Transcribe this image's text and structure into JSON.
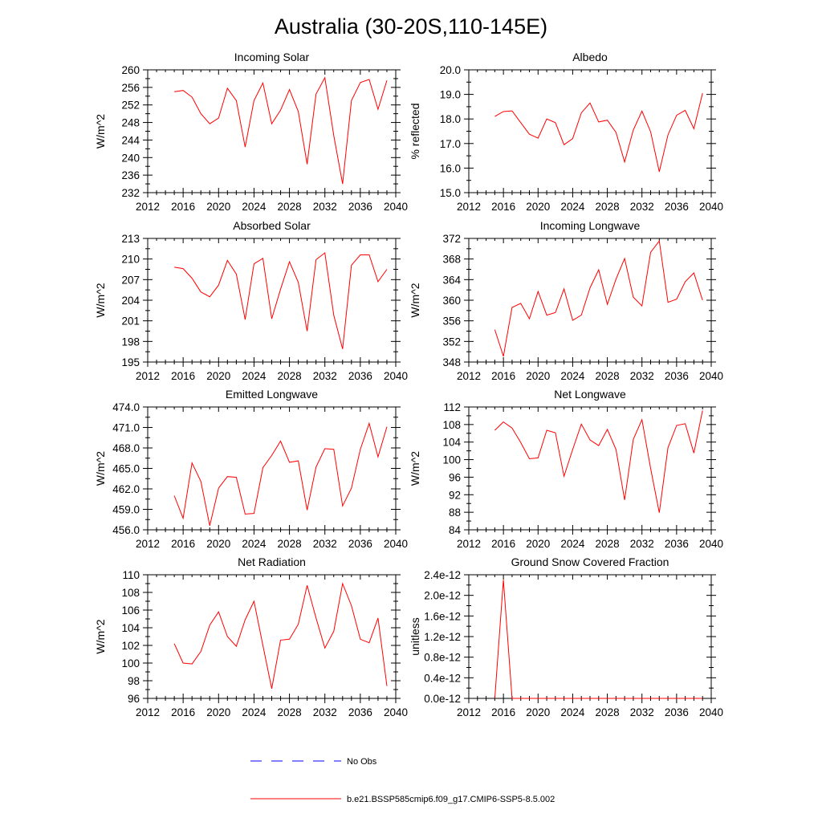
{
  "title": "Australia (30-20S,110-145E)",
  "colors": {
    "model": "#ff0000",
    "obs": "#0000ff",
    "axis": "#000000"
  },
  "legend": {
    "obs_label": "No Obs",
    "model_label": "b.e21.BSSP585cmip6.f09_g17.CMIP6-SSP5-8.5.002"
  },
  "chart_data": [
    {
      "type": "line",
      "title": "Incoming Solar",
      "ylabel": "W/m^2",
      "xlim": [
        2012,
        2040
      ],
      "ylim": [
        232,
        260
      ],
      "xticks": [
        "2012",
        "2016",
        "2020",
        "2024",
        "2028",
        "2032",
        "2036",
        "2040"
      ],
      "yticks": [
        "232",
        "236",
        "240",
        "244",
        "248",
        "252",
        "256",
        "260"
      ],
      "series": [
        {
          "x": [
            2015,
            2016,
            2017,
            2018,
            2019,
            2020,
            2021,
            2022,
            2023,
            2024,
            2025,
            2026,
            2027,
            2028,
            2029,
            2030,
            2031,
            2032,
            2033,
            2034,
            2035,
            2036,
            2037,
            2038,
            2039
          ],
          "values": [
            255.0,
            255.3,
            253.8,
            250.0,
            247.7,
            249.0,
            255.8,
            253.0,
            242.4,
            253.0,
            257.0,
            247.7,
            250.8,
            255.5,
            250.5,
            238.5,
            254.5,
            258.2,
            245.0,
            234.0,
            253.0,
            257.1,
            257.8,
            251.0,
            257.6
          ]
        }
      ]
    },
    {
      "type": "line",
      "title": "Albedo",
      "ylabel": "% reflected",
      "xlim": [
        2012,
        2040
      ],
      "ylim": [
        15.0,
        20.0
      ],
      "xticks": [
        "2012",
        "2016",
        "2020",
        "2024",
        "2028",
        "2032",
        "2036",
        "2040"
      ],
      "yticks": [
        "15.0",
        "16.0",
        "17.0",
        "18.0",
        "19.0",
        "20.0"
      ],
      "series": [
        {
          "x": [
            2015,
            2016,
            2017,
            2018,
            2019,
            2020,
            2021,
            2022,
            2023,
            2024,
            2025,
            2026,
            2027,
            2028,
            2029,
            2030,
            2031,
            2032,
            2033,
            2034,
            2035,
            2036,
            2037,
            2038,
            2039
          ],
          "values": [
            18.1,
            18.3,
            18.33,
            17.85,
            17.38,
            17.22,
            18.0,
            17.85,
            16.95,
            17.2,
            18.25,
            18.65,
            17.88,
            17.95,
            17.45,
            16.25,
            17.55,
            18.32,
            17.48,
            15.85,
            17.35,
            18.15,
            18.35,
            17.6,
            19.05
          ]
        }
      ]
    },
    {
      "type": "line",
      "title": "Absorbed Solar",
      "ylabel": "W/m^2",
      "xlim": [
        2012,
        2040
      ],
      "ylim": [
        195,
        213
      ],
      "xticks": [
        "2012",
        "2016",
        "2020",
        "2024",
        "2028",
        "2032",
        "2036",
        "2040"
      ],
      "yticks": [
        "195",
        "198",
        "201",
        "204",
        "207",
        "210",
        "213"
      ],
      "series": [
        {
          "x": [
            2015,
            2016,
            2017,
            2018,
            2019,
            2020,
            2021,
            2022,
            2023,
            2024,
            2025,
            2026,
            2027,
            2028,
            2029,
            2030,
            2031,
            2032,
            2033,
            2034,
            2035,
            2036,
            2037,
            2038,
            2039
          ],
          "values": [
            208.8,
            208.6,
            207.2,
            205.2,
            204.5,
            206.2,
            209.8,
            207.8,
            201.2,
            209.3,
            210.1,
            201.3,
            205.6,
            209.6,
            206.6,
            199.5,
            209.9,
            210.9,
            201.8,
            196.9,
            209.1,
            210.6,
            210.6,
            206.7,
            208.5
          ]
        }
      ]
    },
    {
      "type": "line",
      "title": "Incoming Longwave",
      "ylabel": "W/m^2",
      "xlim": [
        2012,
        2040
      ],
      "ylim": [
        348,
        372
      ],
      "xticks": [
        "2012",
        "2016",
        "2020",
        "2024",
        "2028",
        "2032",
        "2036",
        "2040"
      ],
      "yticks": [
        "348",
        "352",
        "356",
        "360",
        "364",
        "368",
        "372"
      ],
      "series": [
        {
          "x": [
            2015,
            2016,
            2017,
            2018,
            2019,
            2020,
            2021,
            2022,
            2023,
            2024,
            2025,
            2026,
            2027,
            2028,
            2029,
            2030,
            2031,
            2032,
            2033,
            2034,
            2035,
            2036,
            2037,
            2038,
            2039
          ],
          "values": [
            354.3,
            349.1,
            358.6,
            359.4,
            356.4,
            361.7,
            357.1,
            357.6,
            362.2,
            356.1,
            357.1,
            362.4,
            365.9,
            359.2,
            364.1,
            368.1,
            360.6,
            358.9,
            369.3,
            371.5,
            359.6,
            360.2,
            363.6,
            365.3,
            360.0
          ]
        }
      ]
    },
    {
      "type": "line",
      "title": "Emitted Longwave",
      "ylabel": "W/m^2",
      "xlim": [
        2012,
        2040
      ],
      "ylim": [
        456.0,
        474.0
      ],
      "xticks": [
        "2012",
        "2016",
        "2020",
        "2024",
        "2028",
        "2032",
        "2036",
        "2040"
      ],
      "yticks": [
        "456.0",
        "459.0",
        "462.0",
        "465.0",
        "468.0",
        "471.0",
        "474.0"
      ],
      "series": [
        {
          "x": [
            2015,
            2016,
            2017,
            2018,
            2019,
            2020,
            2021,
            2022,
            2023,
            2024,
            2025,
            2026,
            2027,
            2028,
            2029,
            2030,
            2031,
            2032,
            2033,
            2034,
            2035,
            2036,
            2037,
            2038,
            2039
          ],
          "values": [
            461.0,
            457.7,
            465.8,
            463.1,
            456.6,
            462.1,
            463.8,
            463.7,
            458.3,
            458.4,
            465.1,
            466.9,
            469.0,
            465.9,
            466.1,
            458.9,
            465.2,
            467.9,
            467.8,
            459.5,
            462.1,
            467.8,
            471.6,
            466.7,
            471.1
          ]
        }
      ]
    },
    {
      "type": "line",
      "title": "Net Longwave",
      "ylabel": "W/m^2",
      "xlim": [
        2012,
        2040
      ],
      "ylim": [
        84,
        112
      ],
      "xticks": [
        "2012",
        "2016",
        "2020",
        "2024",
        "2028",
        "2032",
        "2036",
        "2040"
      ],
      "yticks": [
        "84",
        "88",
        "92",
        "96",
        "100",
        "104",
        "108",
        "112"
      ],
      "series": [
        {
          "x": [
            2015,
            2016,
            2017,
            2018,
            2019,
            2020,
            2021,
            2022,
            2023,
            2024,
            2025,
            2026,
            2027,
            2028,
            2029,
            2030,
            2031,
            2032,
            2033,
            2034,
            2035,
            2036,
            2037,
            2038,
            2039
          ],
          "values": [
            106.7,
            108.6,
            107.2,
            103.9,
            100.2,
            100.4,
            106.7,
            106.1,
            96.2,
            102.3,
            108.1,
            104.5,
            103.2,
            106.9,
            102.3,
            90.8,
            104.6,
            109.1,
            98.0,
            87.9,
            102.7,
            107.8,
            108.2,
            101.5,
            111.2
          ]
        }
      ]
    },
    {
      "type": "line",
      "title": "Net Radiation",
      "ylabel": "W/m^2",
      "xlim": [
        2012,
        2040
      ],
      "ylim": [
        96,
        110
      ],
      "xticks": [
        "2012",
        "2016",
        "2020",
        "2024",
        "2028",
        "2032",
        "2036",
        "2040"
      ],
      "yticks": [
        "96",
        "98",
        "100",
        "102",
        "104",
        "106",
        "108",
        "110"
      ],
      "series": [
        {
          "x": [
            2015,
            2016,
            2017,
            2018,
            2019,
            2020,
            2021,
            2022,
            2023,
            2024,
            2025,
            2026,
            2027,
            2028,
            2029,
            2030,
            2031,
            2032,
            2033,
            2034,
            2035,
            2036,
            2037,
            2038,
            2039
          ],
          "values": [
            102.2,
            100.0,
            99.9,
            101.3,
            104.3,
            105.8,
            103.0,
            101.9,
            104.9,
            107.0,
            102.0,
            97.1,
            102.6,
            102.7,
            104.4,
            108.8,
            105.1,
            101.7,
            103.6,
            109.0,
            106.5,
            102.7,
            102.3,
            105.1,
            97.4
          ]
        }
      ]
    },
    {
      "type": "line",
      "title": "Ground Snow Covered Fraction",
      "ylabel": "unitless",
      "xlim": [
        2012,
        2040
      ],
      "ylim": [
        0,
        2.4e-12
      ],
      "xticks": [
        "2012",
        "2016",
        "2020",
        "2024",
        "2028",
        "2032",
        "2036",
        "2040"
      ],
      "yticks": [
        "0.0e-12",
        "0.4e-12",
        "0.8e-12",
        "1.2e-12",
        "1.6e-12",
        "2.0e-12",
        "2.4e-12"
      ],
      "series": [
        {
          "x": [
            2015,
            2016,
            2017,
            2018,
            2019,
            2020,
            2021,
            2022,
            2023,
            2024,
            2025,
            2026,
            2027,
            2028,
            2029,
            2030,
            2031,
            2032,
            2033,
            2034,
            2035,
            2036,
            2037,
            2038,
            2039
          ],
          "values": [
            0,
            2.3e-12,
            0,
            0,
            0,
            0,
            0,
            0,
            0,
            0,
            0,
            0,
            0,
            0,
            0,
            0,
            0,
            0,
            0,
            0,
            0,
            0,
            0,
            0,
            0
          ]
        }
      ]
    }
  ]
}
